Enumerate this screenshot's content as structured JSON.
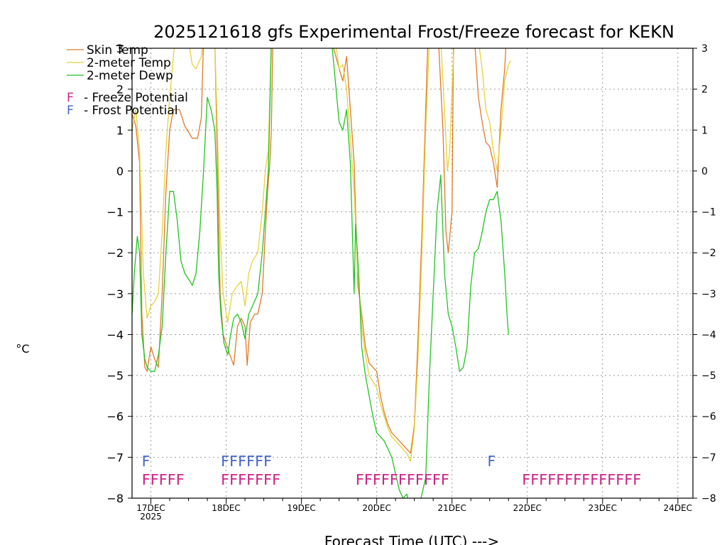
{
  "chart_data": {
    "type": "line",
    "title": "2025121618 gfs Experimental Frost/Freeze forecast for KEKN",
    "xlabel": "Forecast Time (UTC) --->",
    "ylabel": "°C",
    "ylim": [
      -8,
      3
    ],
    "xlim_days": [
      16.75,
      24.2
    ],
    "y_ticks": [
      -8,
      -7,
      -6,
      -5,
      -4,
      -3,
      -2,
      -1,
      0,
      1,
      2,
      3
    ],
    "x_ticks": [
      {
        "day": 17,
        "label": "17DEC",
        "sub": "2025"
      },
      {
        "day": 18,
        "label": "18DEC",
        "sub": ""
      },
      {
        "day": 19,
        "label": "19DEC",
        "sub": ""
      },
      {
        "day": 20,
        "label": "20DEC",
        "sub": ""
      },
      {
        "day": 21,
        "label": "21DEC",
        "sub": ""
      },
      {
        "day": 22,
        "label": "22DEC",
        "sub": ""
      },
      {
        "day": 23,
        "label": "23DEC",
        "sub": ""
      },
      {
        "day": 24,
        "label": "24DEC",
        "sub": ""
      }
    ],
    "grid": true,
    "legend_position": "top-left",
    "series": [
      {
        "name": "Skin Temp",
        "color": "#e07a2a",
        "points": [
          [
            16.75,
            1.4
          ],
          [
            16.8,
            1.1
          ],
          [
            16.85,
            0.2
          ],
          [
            16.88,
            -3.5
          ],
          [
            16.92,
            -4.8
          ],
          [
            16.95,
            -4.9
          ],
          [
            17.0,
            -4.3
          ],
          [
            17.05,
            -4.6
          ],
          [
            17.1,
            -4.8
          ],
          [
            17.15,
            -3.0
          ],
          [
            17.2,
            -0.5
          ],
          [
            17.25,
            1.0
          ],
          [
            17.3,
            1.5
          ],
          [
            17.38,
            1.5
          ],
          [
            17.45,
            1.1
          ],
          [
            17.55,
            0.8
          ],
          [
            17.62,
            0.8
          ],
          [
            17.67,
            1.3
          ],
          [
            17.7,
            3.2
          ],
          [
            17.85,
            3.2
          ],
          [
            17.88,
            0.5
          ],
          [
            17.92,
            -3.0
          ],
          [
            17.96,
            -4.0
          ],
          [
            18.05,
            -4.5
          ],
          [
            18.1,
            -4.75
          ],
          [
            18.15,
            -3.8
          ],
          [
            18.2,
            -3.6
          ],
          [
            18.25,
            -3.8
          ],
          [
            18.28,
            -4.75
          ],
          [
            18.32,
            -3.7
          ],
          [
            18.38,
            -3.5
          ],
          [
            18.42,
            -3.5
          ],
          [
            18.48,
            -3.0
          ],
          [
            18.52,
            -1.5
          ],
          [
            18.55,
            -0.5
          ],
          [
            18.58,
            0.2
          ],
          [
            18.6,
            1.0
          ],
          [
            18.62,
            3.2
          ],
          [
            19.4,
            3.2
          ],
          [
            19.5,
            2.5
          ],
          [
            19.55,
            2.2
          ],
          [
            19.6,
            2.8
          ],
          [
            19.65,
            1.5
          ],
          [
            19.7,
            0.2
          ],
          [
            19.72,
            -1.0
          ],
          [
            19.75,
            -2.8
          ],
          [
            19.8,
            -3.5
          ],
          [
            19.85,
            -4.3
          ],
          [
            19.9,
            -4.7
          ],
          [
            19.95,
            -4.8
          ],
          [
            20.0,
            -4.9
          ],
          [
            20.05,
            -5.5
          ],
          [
            20.1,
            -5.9
          ],
          [
            20.15,
            -6.2
          ],
          [
            20.2,
            -6.4
          ],
          [
            20.3,
            -6.6
          ],
          [
            20.4,
            -6.8
          ],
          [
            20.45,
            -6.9
          ],
          [
            20.5,
            -6.2
          ],
          [
            20.55,
            -4.0
          ],
          [
            20.6,
            -1.5
          ],
          [
            20.65,
            1.5
          ],
          [
            20.68,
            3.2
          ],
          [
            20.82,
            3.2
          ],
          [
            20.88,
            1.0
          ],
          [
            20.92,
            -1.5
          ],
          [
            20.95,
            -2.0
          ],
          [
            21.0,
            -1.0
          ],
          [
            21.02,
            3.2
          ],
          [
            21.3,
            3.2
          ],
          [
            21.35,
            1.8
          ],
          [
            21.4,
            1.2
          ],
          [
            21.45,
            0.7
          ],
          [
            21.5,
            0.6
          ],
          [
            21.55,
            0.2
          ],
          [
            21.6,
            -0.4
          ],
          [
            21.65,
            1.5
          ],
          [
            21.7,
            2.5
          ],
          [
            21.72,
            3.2
          ]
        ]
      },
      {
        "name": "2-meter Temp",
        "color": "#e6d23a",
        "points": [
          [
            16.75,
            1.0
          ],
          [
            16.8,
            1.5
          ],
          [
            16.85,
            0.5
          ],
          [
            16.9,
            -2.5
          ],
          [
            16.95,
            -3.6
          ],
          [
            17.0,
            -3.3
          ],
          [
            17.05,
            -3.2
          ],
          [
            17.1,
            -3.0
          ],
          [
            17.15,
            -1.5
          ],
          [
            17.2,
            0.5
          ],
          [
            17.25,
            1.8
          ],
          [
            17.32,
            3.2
          ],
          [
            17.5,
            3.2
          ],
          [
            17.55,
            2.6
          ],
          [
            17.6,
            2.5
          ],
          [
            17.67,
            2.8
          ],
          [
            17.7,
            3.2
          ],
          [
            17.85,
            3.2
          ],
          [
            17.88,
            1.2
          ],
          [
            17.92,
            -1.5
          ],
          [
            17.96,
            -3.0
          ],
          [
            18.02,
            -3.7
          ],
          [
            18.08,
            -3.0
          ],
          [
            18.15,
            -2.8
          ],
          [
            18.2,
            -2.7
          ],
          [
            18.25,
            -3.3
          ],
          [
            18.3,
            -2.5
          ],
          [
            18.35,
            -2.2
          ],
          [
            18.42,
            -2.0
          ],
          [
            18.48,
            -1.0
          ],
          [
            18.52,
            0.0
          ],
          [
            18.56,
            0.5
          ],
          [
            18.6,
            3.2
          ],
          [
            19.45,
            3.2
          ],
          [
            19.5,
            2.5
          ],
          [
            19.55,
            2.6
          ],
          [
            19.6,
            2.0
          ],
          [
            19.65,
            0.8
          ],
          [
            19.7,
            -0.5
          ],
          [
            19.75,
            -2.5
          ],
          [
            19.8,
            -3.8
          ],
          [
            19.85,
            -4.5
          ],
          [
            19.9,
            -5.0
          ],
          [
            20.0,
            -5.3
          ],
          [
            20.05,
            -5.7
          ],
          [
            20.1,
            -6.0
          ],
          [
            20.15,
            -6.3
          ],
          [
            20.2,
            -6.5
          ],
          [
            20.3,
            -6.7
          ],
          [
            20.4,
            -6.9
          ],
          [
            20.45,
            -7.1
          ],
          [
            20.5,
            -6.3
          ],
          [
            20.55,
            -4.5
          ],
          [
            20.6,
            -2.0
          ],
          [
            20.65,
            1.0
          ],
          [
            20.7,
            3.2
          ],
          [
            20.85,
            3.2
          ],
          [
            20.9,
            1.5
          ],
          [
            20.94,
            0.0
          ],
          [
            20.97,
            0.5
          ],
          [
            21.0,
            2.0
          ],
          [
            21.03,
            3.2
          ],
          [
            21.35,
            3.2
          ],
          [
            21.4,
            2.5
          ],
          [
            21.45,
            1.5
          ],
          [
            21.5,
            1.2
          ],
          [
            21.55,
            0.5
          ],
          [
            21.6,
            0.0
          ],
          [
            21.65,
            1.0
          ],
          [
            21.7,
            2.2
          ],
          [
            21.75,
            2.6
          ],
          [
            21.78,
            2.7
          ]
        ]
      },
      {
        "name": "2-meter Dewp",
        "color": "#22c422",
        "points": [
          [
            16.75,
            -3.5
          ],
          [
            16.78,
            -2.5
          ],
          [
            16.82,
            -1.6
          ],
          [
            16.85,
            -2.0
          ],
          [
            16.88,
            -4.0
          ],
          [
            16.92,
            -4.6
          ],
          [
            16.95,
            -4.8
          ],
          [
            17.0,
            -4.9
          ],
          [
            17.05,
            -4.9
          ],
          [
            17.1,
            -4.5
          ],
          [
            17.15,
            -3.8
          ],
          [
            17.2,
            -2.0
          ],
          [
            17.25,
            -0.5
          ],
          [
            17.3,
            -0.5
          ],
          [
            17.35,
            -1.2
          ],
          [
            17.4,
            -2.2
          ],
          [
            17.45,
            -2.5
          ],
          [
            17.52,
            -2.7
          ],
          [
            17.55,
            -2.8
          ],
          [
            17.6,
            -2.5
          ],
          [
            17.65,
            -1.5
          ],
          [
            17.7,
            0.0
          ],
          [
            17.75,
            1.8
          ],
          [
            17.8,
            1.5
          ],
          [
            17.85,
            1.0
          ],
          [
            17.88,
            -0.5
          ],
          [
            17.9,
            -2.5
          ],
          [
            17.93,
            -3.5
          ],
          [
            17.97,
            -4.2
          ],
          [
            18.02,
            -4.5
          ],
          [
            18.06,
            -4.0
          ],
          [
            18.1,
            -3.6
          ],
          [
            18.15,
            -3.5
          ],
          [
            18.2,
            -3.7
          ],
          [
            18.25,
            -4.1
          ],
          [
            18.3,
            -3.5
          ],
          [
            18.35,
            -3.3
          ],
          [
            18.42,
            -3.0
          ],
          [
            18.48,
            -2.0
          ],
          [
            18.52,
            -1.0
          ],
          [
            18.56,
            0.0
          ],
          [
            18.58,
            1.5
          ],
          [
            18.6,
            3.2
          ],
          [
            19.4,
            3.2
          ],
          [
            19.45,
            2.2
          ],
          [
            19.5,
            1.2
          ],
          [
            19.55,
            1.0
          ],
          [
            19.6,
            1.5
          ],
          [
            19.65,
            0.2
          ],
          [
            19.7,
            -3.0
          ],
          [
            19.72,
            -1.3
          ],
          [
            19.76,
            -2.5
          ],
          [
            19.8,
            -4.3
          ],
          [
            19.85,
            -5.0
          ],
          [
            19.9,
            -5.5
          ],
          [
            19.95,
            -6.0
          ],
          [
            20.0,
            -6.4
          ],
          [
            20.05,
            -6.5
          ],
          [
            20.1,
            -6.6
          ],
          [
            20.15,
            -6.8
          ],
          [
            20.2,
            -7.0
          ],
          [
            20.25,
            -7.4
          ],
          [
            20.3,
            -7.8
          ],
          [
            20.35,
            -8.0
          ],
          [
            20.4,
            -7.9
          ],
          [
            20.45,
            -8.3
          ],
          [
            20.55,
            -8.3
          ],
          [
            20.65,
            -7.5
          ],
          [
            20.7,
            -5.0
          ],
          [
            20.75,
            -3.0
          ],
          [
            20.8,
            -1.0
          ],
          [
            20.85,
            -0.1
          ],
          [
            20.9,
            -2.5
          ],
          [
            20.95,
            -3.5
          ],
          [
            21.0,
            -3.8
          ],
          [
            21.05,
            -4.3
          ],
          [
            21.1,
            -4.9
          ],
          [
            21.15,
            -4.8
          ],
          [
            21.2,
            -4.3
          ],
          [
            21.25,
            -2.8
          ],
          [
            21.3,
            -2.0
          ],
          [
            21.35,
            -1.9
          ],
          [
            21.4,
            -1.5
          ],
          [
            21.45,
            -1.0
          ],
          [
            21.5,
            -0.7
          ],
          [
            21.55,
            -0.7
          ],
          [
            21.6,
            -0.5
          ],
          [
            21.65,
            -1.2
          ],
          [
            21.7,
            -2.5
          ],
          [
            21.73,
            -3.5
          ],
          [
            21.75,
            -4.0
          ]
        ]
      }
    ],
    "flag_rows": [
      {
        "name": "Frost Potential",
        "color": "#4466cc",
        "y": -7.1,
        "runs": [
          {
            "start": 16.88,
            "text": "F"
          },
          {
            "start": 17.93,
            "text": "FFFFFF"
          },
          {
            "start": 21.47,
            "text": "F"
          }
        ]
      },
      {
        "name": "Freeze Potential",
        "color": "#cc2288",
        "y": -7.55,
        "runs": [
          {
            "start": 16.88,
            "text": "FFFFF"
          },
          {
            "start": 17.93,
            "text": "FFFFFFF"
          },
          {
            "start": 19.72,
            "text": "FFFFFFFFFFF"
          },
          {
            "start": 21.93,
            "text": "FFFFFFFFFFFFFF"
          }
        ]
      }
    ],
    "legend": {
      "lines": [
        "Skin Temp",
        "2-meter Temp",
        "2-meter Dewp"
      ],
      "flags": [
        {
          "letter": "F",
          "label": "- Freeze Potential",
          "color": "#cc2288"
        },
        {
          "letter": "F",
          "label": "- Frost Potential",
          "color": "#4466cc"
        }
      ]
    }
  }
}
